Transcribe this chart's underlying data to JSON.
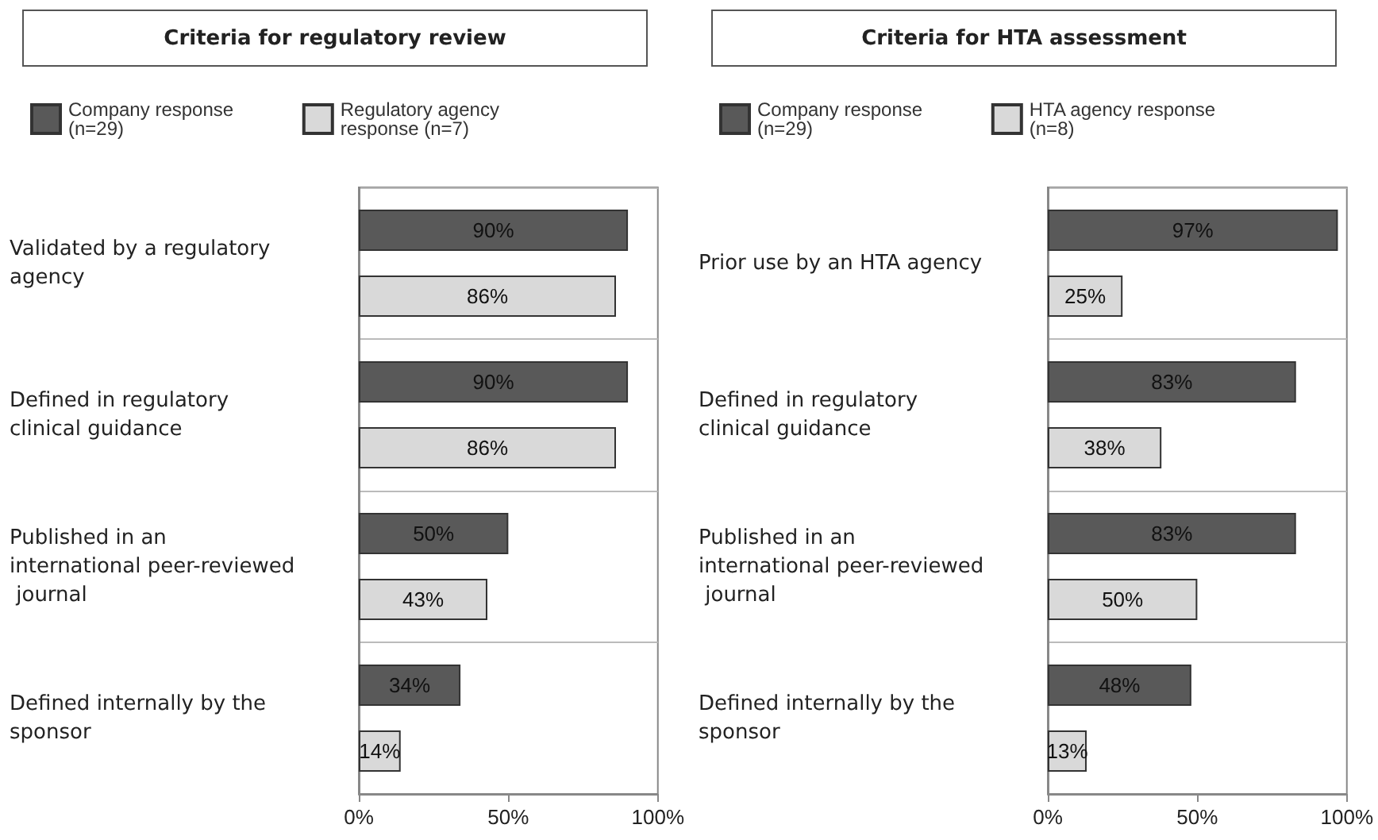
{
  "chart_data": [
    {
      "type": "bar",
      "orientation": "horizontal",
      "title": "Criteria for regulatory review",
      "categories": [
        "Validated by a regulatory agency",
        "Defined in regulatory clinical guidance",
        "Published in an international peer-reviewed journal",
        "Defined internally by the sponsor"
      ],
      "series": [
        {
          "name": "Company response (n=29)",
          "color": "#595959",
          "values": [
            90,
            90,
            50,
            34
          ],
          "value_labels": [
            "90%",
            "90%",
            "50%",
            "34%"
          ]
        },
        {
          "name": "Regulatory agency response (n=7)",
          "color": "#d9d9d9",
          "values": [
            86,
            86,
            43,
            14
          ],
          "value_labels": [
            "86%",
            "86%",
            "43%",
            "14%"
          ]
        }
      ],
      "xlim": [
        0,
        100
      ],
      "xticks": [
        {
          "value": 0,
          "label": "0%"
        },
        {
          "value": 50,
          "label": "50%"
        },
        {
          "value": 100,
          "label": "100%"
        }
      ],
      "grid": "y",
      "legend": "top"
    },
    {
      "type": "bar",
      "orientation": "horizontal",
      "title": "Criteria for HTA assessment",
      "categories": [
        "Prior use by an HTA agency",
        "Defined in regulatory clinical guidance",
        "Published in an international peer-reviewed journal",
        "Defined internally by the sponsor"
      ],
      "series": [
        {
          "name": "Company response (n=29)",
          "color": "#595959",
          "values": [
            97,
            83,
            83,
            48
          ],
          "value_labels": [
            "97%",
            "83%",
            "83%",
            "48%"
          ]
        },
        {
          "name": "HTA agency response  (n=8)",
          "color": "#d9d9d9",
          "values": [
            25,
            38,
            50,
            13
          ],
          "value_labels": [
            "25%",
            "38%",
            "50%",
            "13%"
          ]
        }
      ],
      "xlim": [
        0,
        100
      ],
      "xticks": [
        {
          "value": 0,
          "label": "0%"
        },
        {
          "value": 50,
          "label": "50%"
        },
        {
          "value": 100,
          "label": "100%"
        }
      ],
      "grid": "y",
      "legend": "top"
    }
  ]
}
